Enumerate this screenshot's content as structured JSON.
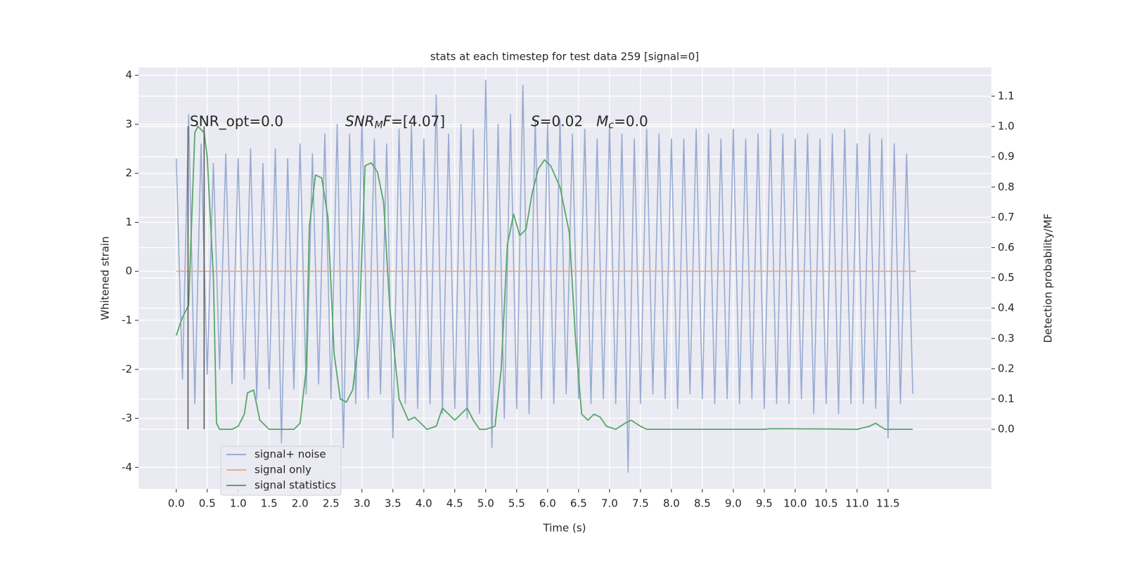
{
  "chart_data": {
    "type": "line",
    "title": "stats at each timestep for test data 259 [signal=0]",
    "xlabel": "Time (s)",
    "ylabel": "Whitened strain",
    "y2label": "Detection probability/MF",
    "xlim": [
      -0.61,
      13.17
    ],
    "ylim": [
      -4.44,
      4.16
    ],
    "y2lim": [
      -0.197,
      1.195
    ],
    "xticks": [
      {
        "value": 0,
        "label": "0.0"
      },
      0.5,
      {
        "value": 1,
        "label": "1.0"
      },
      1.5,
      {
        "value": 2,
        "label": "2.0"
      },
      2.5,
      {
        "value": 3,
        "label": "3.0"
      },
      3.5,
      {
        "value": 4,
        "label": "4.0"
      },
      4.5,
      {
        "value": 5,
        "label": "5.0"
      },
      5.5,
      {
        "value": 6,
        "label": "6.0"
      },
      6.5,
      {
        "value": 7,
        "label": "7.0"
      },
      7.5,
      {
        "value": 8,
        "label": "8.0"
      },
      8.5,
      {
        "value": 9,
        "label": "9.0"
      },
      9.5,
      {
        "value": 10,
        "label": "10.0"
      },
      10.5,
      {
        "value": 11,
        "label": "11.0"
      },
      11.5
    ],
    "yticks": [
      -4,
      -3,
      -2,
      -1,
      0,
      1,
      2,
      3,
      4
    ],
    "y2ticks": [
      {
        "value": 0,
        "label": "0.0"
      },
      0.1,
      0.2,
      0.3,
      0.4,
      0.5,
      0.6,
      0.7,
      0.8,
      0.9,
      {
        "value": 1,
        "label": "1.0"
      },
      1.1
    ],
    "grid": true,
    "legend": "lower left",
    "series": [
      {
        "name": "signal+ noise",
        "color": "#98abd1",
        "axis": "y",
        "x": [
          0,
          0.1,
          0.2,
          0.3,
          0.4,
          0.5,
          0.6,
          0.7,
          0.8,
          0.9,
          1,
          1.1,
          1.2,
          1.3,
          1.4,
          1.5,
          1.6,
          1.7,
          1.8,
          1.9,
          2,
          2.1,
          2.2,
          2.3,
          2.4,
          2.5,
          2.6,
          2.7,
          2.8,
          2.9,
          3,
          3.1,
          3.2,
          3.3,
          3.4,
          3.5,
          3.6,
          3.7,
          3.8,
          3.9,
          4,
          4.1,
          4.2,
          4.3,
          4.4,
          4.5,
          4.6,
          4.7,
          4.8,
          4.9,
          5,
          5.1,
          5.2,
          5.3,
          5.4,
          5.5,
          5.6,
          5.7,
          5.8,
          5.9,
          6,
          6.1,
          6.2,
          6.3,
          6.4,
          6.5,
          6.6,
          6.7,
          6.8,
          6.9,
          7,
          7.1,
          7.2,
          7.3,
          7.4,
          7.5,
          7.6,
          7.7,
          7.8,
          7.9,
          8,
          8.1,
          8.2,
          8.3,
          8.4,
          8.5,
          8.6,
          8.7,
          8.8,
          8.9,
          9,
          9.1,
          9.2,
          9.3,
          9.4,
          9.5,
          9.6,
          9.7,
          9.8,
          9.9,
          10,
          10.1,
          10.2,
          10.3,
          10.4,
          10.5,
          10.6,
          10.7,
          10.8,
          10.9,
          11,
          11.1,
          11.2,
          11.3,
          11.4,
          11.5,
          11.6,
          11.7,
          11.8,
          11.9
        ],
        "values": [
          2.3,
          -2.2,
          3.2,
          -2.7,
          2.6,
          -2.1,
          2.2,
          -2.0,
          2.4,
          -2.3,
          2.3,
          -2.2,
          2.5,
          -2.6,
          2.2,
          -2.4,
          2.5,
          -3.5,
          2.3,
          -2.4,
          2.6,
          -2.5,
          2.4,
          -2.3,
          2.8,
          -2.6,
          3.0,
          -3.6,
          2.8,
          -2.7,
          3.1,
          -2.6,
          2.7,
          -2.5,
          2.6,
          -3.4,
          2.9,
          -2.7,
          3.0,
          -2.8,
          2.7,
          -2.7,
          3.6,
          -2.9,
          2.8,
          -2.8,
          3.0,
          -3.0,
          2.9,
          -2.9,
          3.9,
          -3.6,
          3.0,
          -3.0,
          3.2,
          -2.8,
          3.8,
          -2.9,
          3.1,
          -2.6,
          3.0,
          -2.7,
          3.1,
          -2.5,
          2.8,
          -2.6,
          2.9,
          -2.7,
          2.7,
          -2.6,
          3.0,
          -2.7,
          2.8,
          -4.1,
          2.7,
          -2.7,
          2.9,
          -2.5,
          2.8,
          -2.6,
          2.7,
          -2.8,
          2.7,
          -2.5,
          2.9,
          -2.6,
          2.8,
          -2.7,
          2.7,
          -2.6,
          2.9,
          -2.7,
          2.7,
          -2.6,
          2.8,
          -2.8,
          2.9,
          -2.7,
          2.8,
          -2.7,
          2.7,
          -2.6,
          2.8,
          -2.9,
          2.7,
          -2.7,
          2.8,
          -2.9,
          2.9,
          -2.7,
          2.6,
          -2.7,
          2.8,
          -2.8,
          2.7,
          -3.4,
          2.6,
          -2.7,
          2.4,
          -2.5
        ]
      },
      {
        "name": "signal only",
        "color": "#eeab8e",
        "axis": "y",
        "x": [
          0,
          11.95
        ],
        "values": [
          0,
          0
        ]
      },
      {
        "name": "signal statistics",
        "color": "#55a868",
        "axis": "y2",
        "x": [
          0,
          0.1,
          0.2,
          0.3,
          0.35,
          0.45,
          0.5,
          0.6,
          0.65,
          0.7,
          0.8,
          0.9,
          1,
          1.1,
          1.15,
          1.25,
          1.35,
          1.5,
          1.7,
          1.9,
          2,
          2.1,
          2.15,
          2.25,
          2.35,
          2.45,
          2.55,
          2.65,
          2.75,
          2.85,
          2.95,
          3.05,
          3.15,
          3.25,
          3.35,
          3.45,
          3.6,
          3.75,
          3.85,
          3.95,
          4.05,
          4.2,
          4.3,
          4.4,
          4.5,
          4.6,
          4.7,
          4.8,
          4.9,
          5,
          5.15,
          5.25,
          5.35,
          5.45,
          5.55,
          5.65,
          5.75,
          5.85,
          5.95,
          6.05,
          6.2,
          6.35,
          6.45,
          6.55,
          6.65,
          6.75,
          6.85,
          6.95,
          7.1,
          7.25,
          7.35,
          7.5,
          7.6,
          8.5,
          9.5,
          9.6,
          10.5,
          11,
          11.2,
          11.3,
          11.45,
          11.9
        ],
        "values": [
          0.31,
          0.37,
          0.41,
          0.98,
          1.0,
          0.98,
          0.9,
          0.5,
          0.02,
          0.0,
          0.0,
          0.0,
          0.01,
          0.05,
          0.12,
          0.13,
          0.03,
          0.0,
          0.0,
          0.0,
          0.02,
          0.2,
          0.67,
          0.84,
          0.83,
          0.7,
          0.25,
          0.1,
          0.09,
          0.13,
          0.3,
          0.87,
          0.88,
          0.85,
          0.75,
          0.4,
          0.1,
          0.03,
          0.04,
          0.02,
          0.0,
          0.01,
          0.07,
          0.05,
          0.03,
          0.05,
          0.07,
          0.03,
          0.0,
          0.0,
          0.01,
          0.2,
          0.61,
          0.71,
          0.64,
          0.66,
          0.78,
          0.86,
          0.89,
          0.87,
          0.8,
          0.65,
          0.3,
          0.05,
          0.03,
          0.05,
          0.04,
          0.01,
          0.0,
          0.02,
          0.03,
          0.01,
          0.0,
          0.0,
          0.0,
          0.002,
          0.001,
          0.0,
          0.01,
          0.02,
          0.0,
          0.0
        ]
      }
    ],
    "vlines": {
      "x": [
        0.19,
        0.45
      ],
      "y2": [
        0,
        1
      ],
      "color": "#555555"
    },
    "annotations": [
      {
        "x": 0.22,
        "y": 3.05,
        "parts": [
          {
            "text": "SNR_opt=0.0"
          }
        ]
      },
      {
        "x": 2.73,
        "y": 3.05,
        "parts": [
          {
            "text": "SNR",
            "italic": true
          },
          {
            "text": "M",
            "italic": true,
            "sub": true
          },
          {
            "text": "F",
            "italic": true
          },
          {
            "text": "=[4.07]"
          }
        ]
      },
      {
        "x": 5.73,
        "y": 3.05,
        "parts": [
          {
            "text": "S",
            "italic": true
          },
          {
            "text": "=0.02   "
          },
          {
            "text": "M",
            "italic": true
          },
          {
            "text": "c",
            "italic": true,
            "sub": true
          },
          {
            "text": "=0.0"
          }
        ]
      }
    ]
  }
}
